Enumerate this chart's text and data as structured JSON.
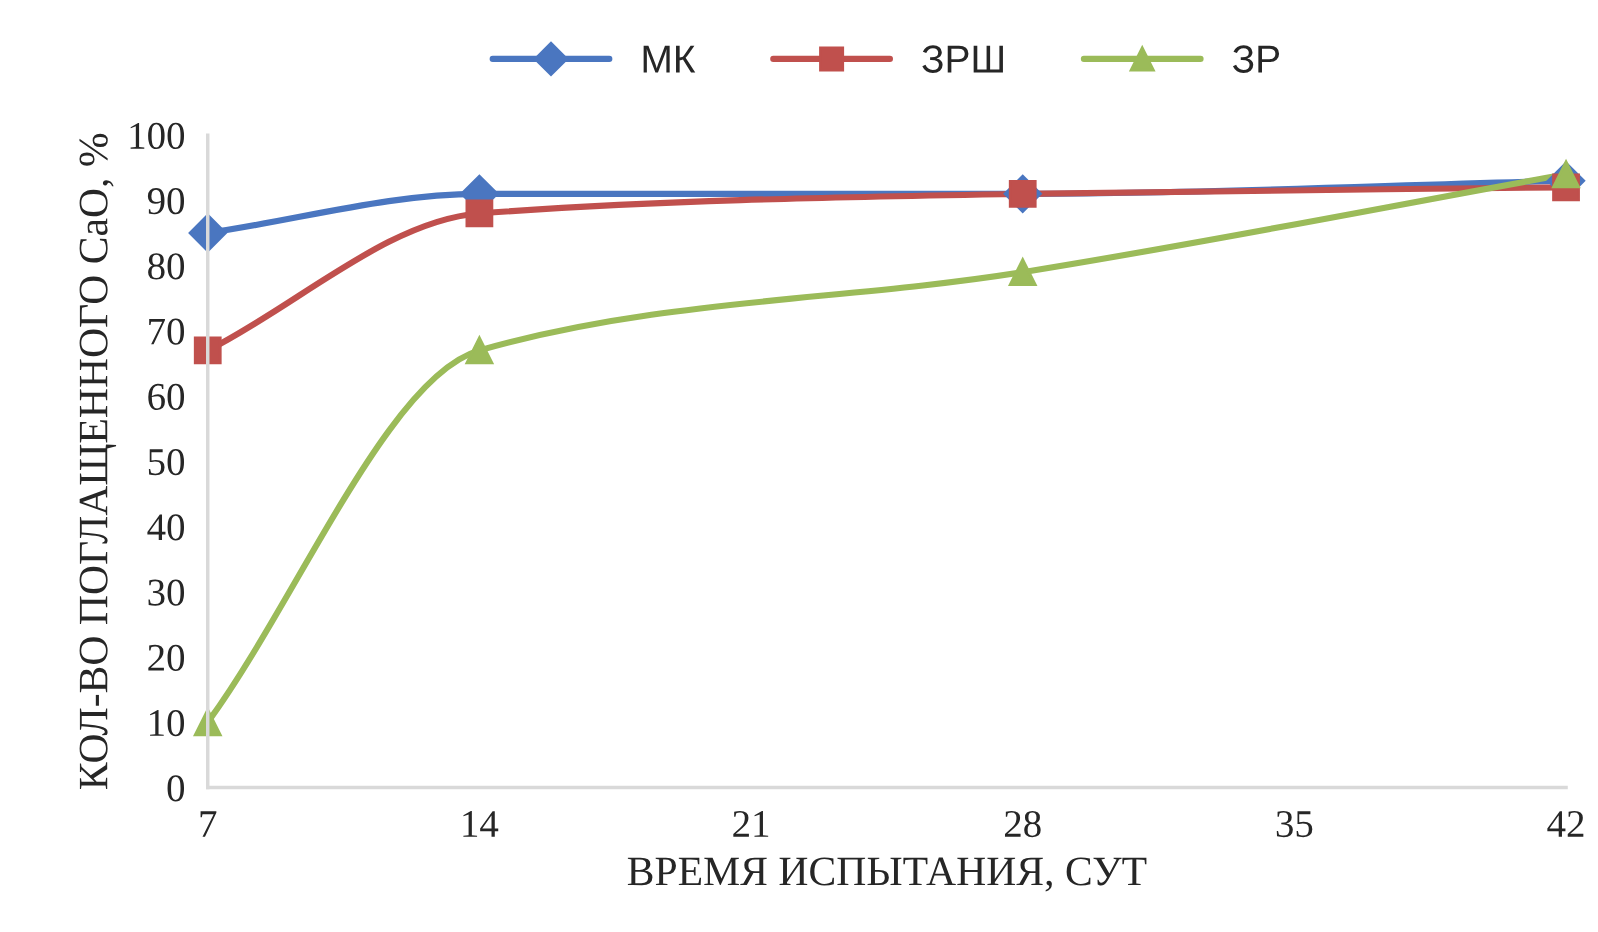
{
  "chart_data": {
    "type": "line",
    "xlabel": "ВРЕМЯ ИСПЫТАНИЯ, СУТ",
    "ylabel": "КОЛ-ВО ПОГЛАЩЕННОГО СаО, %",
    "x": [
      7,
      14,
      28,
      42
    ],
    "series": [
      {
        "name": "МК",
        "color": "#4a76c0",
        "marker": "diamond",
        "values": [
          85,
          91,
          91,
          93
        ]
      },
      {
        "name": "ЗРШ",
        "color": "#c0504d",
        "marker": "square",
        "values": [
          67,
          88,
          91,
          92
        ]
      },
      {
        "name": "ЗР",
        "color": "#9bbb59",
        "marker": "triangle",
        "values": [
          10,
          67,
          79,
          94
        ]
      }
    ],
    "xlim": [
      7,
      42
    ],
    "xticks": [
      7,
      14,
      21,
      28,
      35,
      42
    ],
    "ylim": [
      0,
      100
    ],
    "yticks": [
      0,
      10,
      20,
      30,
      40,
      50,
      60,
      70,
      80,
      90,
      100
    ],
    "grid": false,
    "legend": "top",
    "line_style": "solid"
  }
}
